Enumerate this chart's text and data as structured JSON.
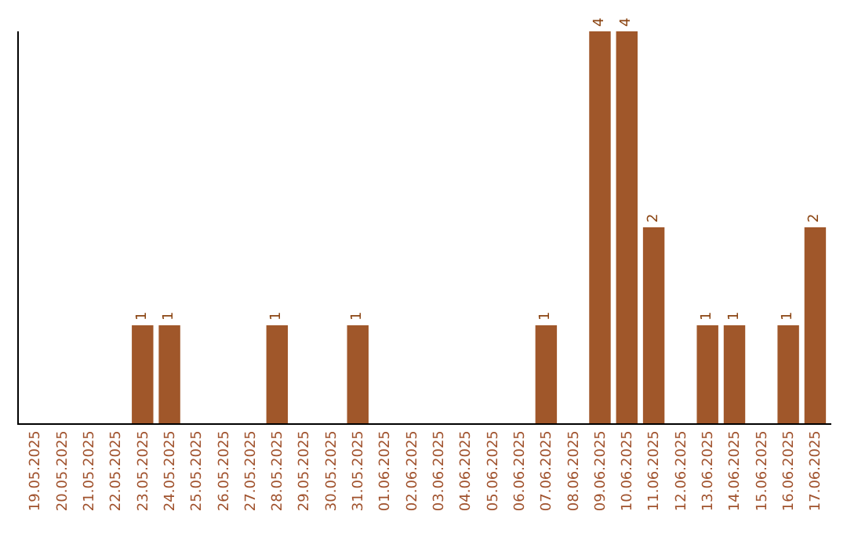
{
  "chart_data": {
    "type": "bar",
    "categories": [
      "19.05.2025",
      "20.05.2025",
      "21.05.2025",
      "22.05.2025",
      "23.05.2025",
      "24.05.2025",
      "25.05.2025",
      "26.05.2025",
      "27.05.2025",
      "28.05.2025",
      "29.05.2025",
      "30.05.2025",
      "31.05.2025",
      "01.06.2025",
      "02.06.2025",
      "03.06.2025",
      "04.06.2025",
      "05.06.2025",
      "06.06.2025",
      "07.06.2025",
      "08.06.2025",
      "09.06.2025",
      "10.06.2025",
      "11.06.2025",
      "12.06.2025",
      "13.06.2025",
      "14.06.2025",
      "15.06.2025",
      "16.06.2025",
      "17.06.2025"
    ],
    "values": [
      0,
      0,
      0,
      0,
      1,
      1,
      0,
      0,
      0,
      1,
      0,
      0,
      1,
      0,
      0,
      0,
      0,
      0,
      0,
      1,
      0,
      4,
      4,
      2,
      0,
      1,
      1,
      0,
      1,
      2
    ],
    "value_labels": [
      null,
      null,
      null,
      null,
      "1",
      "1",
      null,
      null,
      null,
      "1",
      null,
      null,
      "1",
      null,
      null,
      null,
      null,
      null,
      null,
      "1",
      null,
      "4",
      "4",
      "2",
      null,
      "1",
      "1",
      null,
      "1",
      "2"
    ],
    "color": "#a0572a",
    "tick_labels": "x"
  }
}
